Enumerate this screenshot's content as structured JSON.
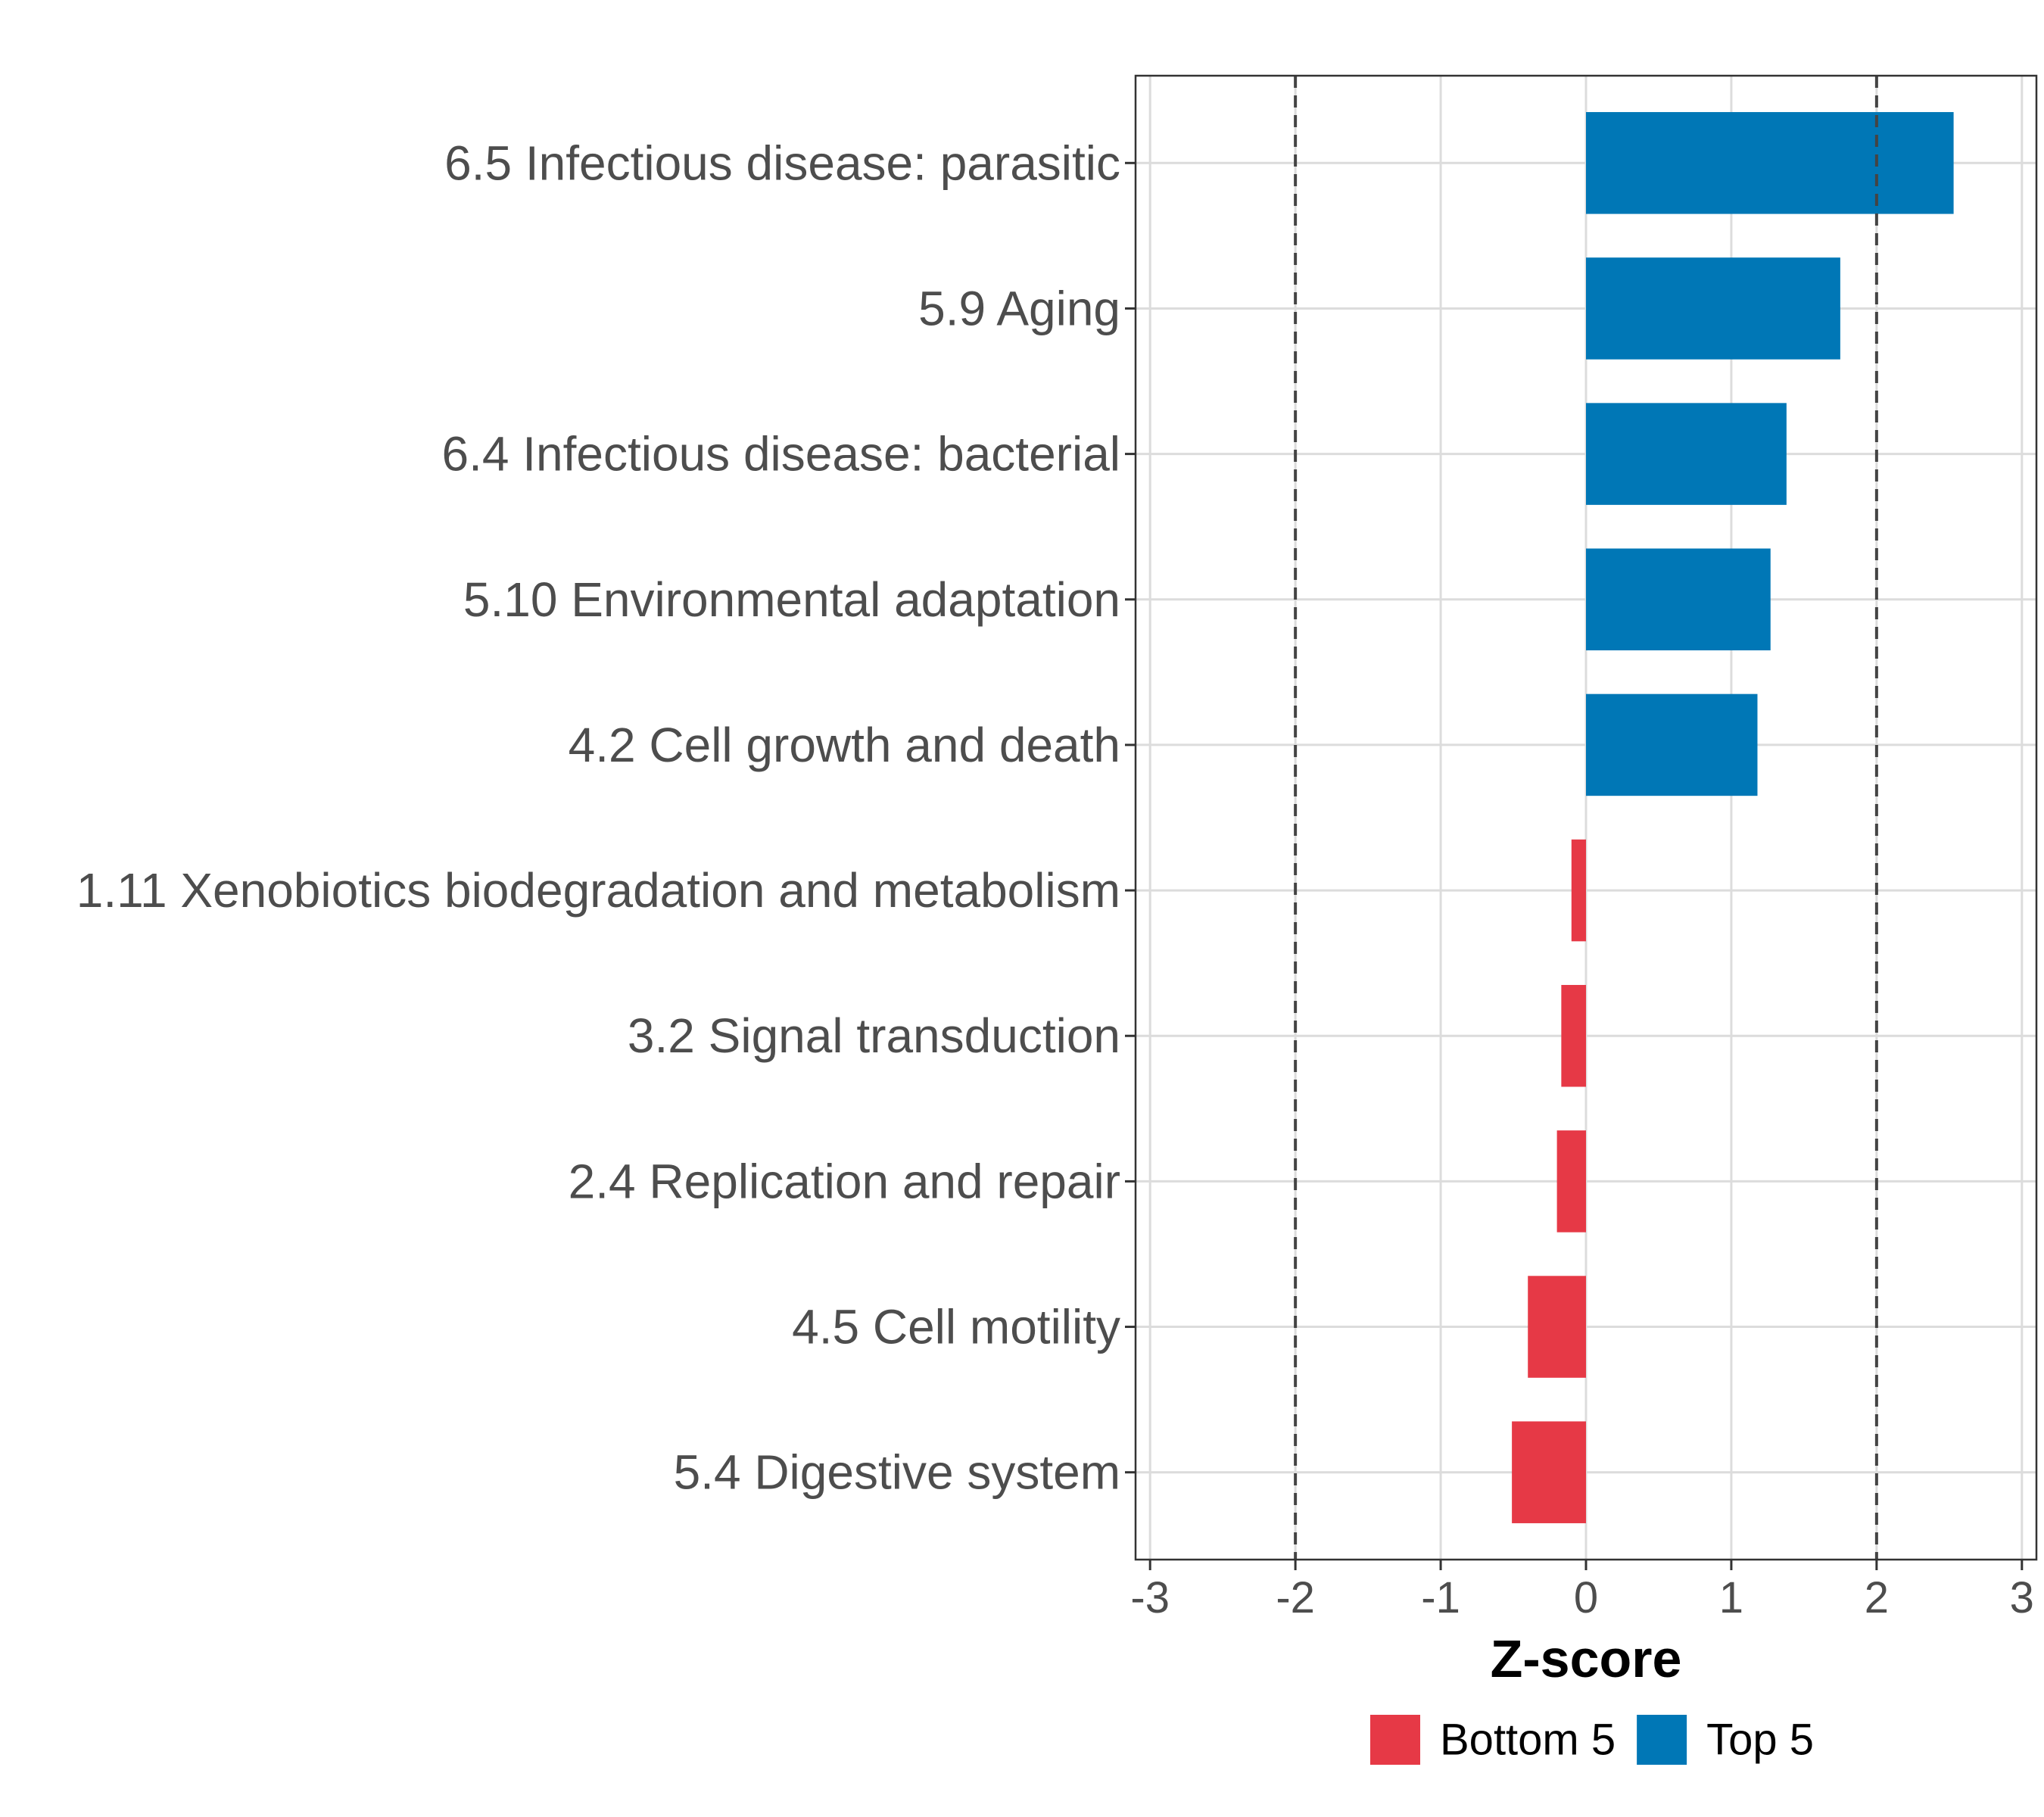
{
  "chart_data": {
    "type": "bar",
    "orientation": "horizontal",
    "title": "",
    "xlabel": "Z-score",
    "ylabel": "",
    "xlim": [
      -3.1,
      3.1
    ],
    "x_ticks": [
      -3,
      -2,
      -1,
      0,
      1,
      2,
      3
    ],
    "x_tick_labels": [
      "-3",
      "-2",
      "-1",
      "0",
      "1",
      "2",
      "3"
    ],
    "reference_lines": [
      -2,
      2
    ],
    "grid": true,
    "categories": [
      "6.5 Infectious disease: parasitic",
      "5.9 Aging",
      "6.4 Infectious disease: bacterial",
      "5.10 Environmental adaptation",
      "4.2 Cell growth and death",
      "1.11 Xenobiotics biodegradation and metabolism",
      "3.2 Signal transduction",
      "2.4 Replication and repair",
      "4.5 Cell motility",
      "5.4 Digestive system"
    ],
    "values": [
      2.53,
      1.75,
      1.38,
      1.27,
      1.18,
      -0.1,
      -0.17,
      -0.2,
      -0.4,
      -0.51
    ],
    "groups": [
      "Top 5",
      "Top 5",
      "Top 5",
      "Top 5",
      "Top 5",
      "Bottom 5",
      "Bottom 5",
      "Bottom 5",
      "Bottom 5",
      "Bottom 5"
    ],
    "legend": {
      "position": "bottom",
      "items": [
        {
          "label": "Bottom 5",
          "color": "#e63946"
        },
        {
          "label": "Top 5",
          "color": "#0077b6"
        }
      ]
    },
    "colors": {
      "Top 5": "#0077b6",
      "Bottom 5": "#e63946"
    }
  }
}
